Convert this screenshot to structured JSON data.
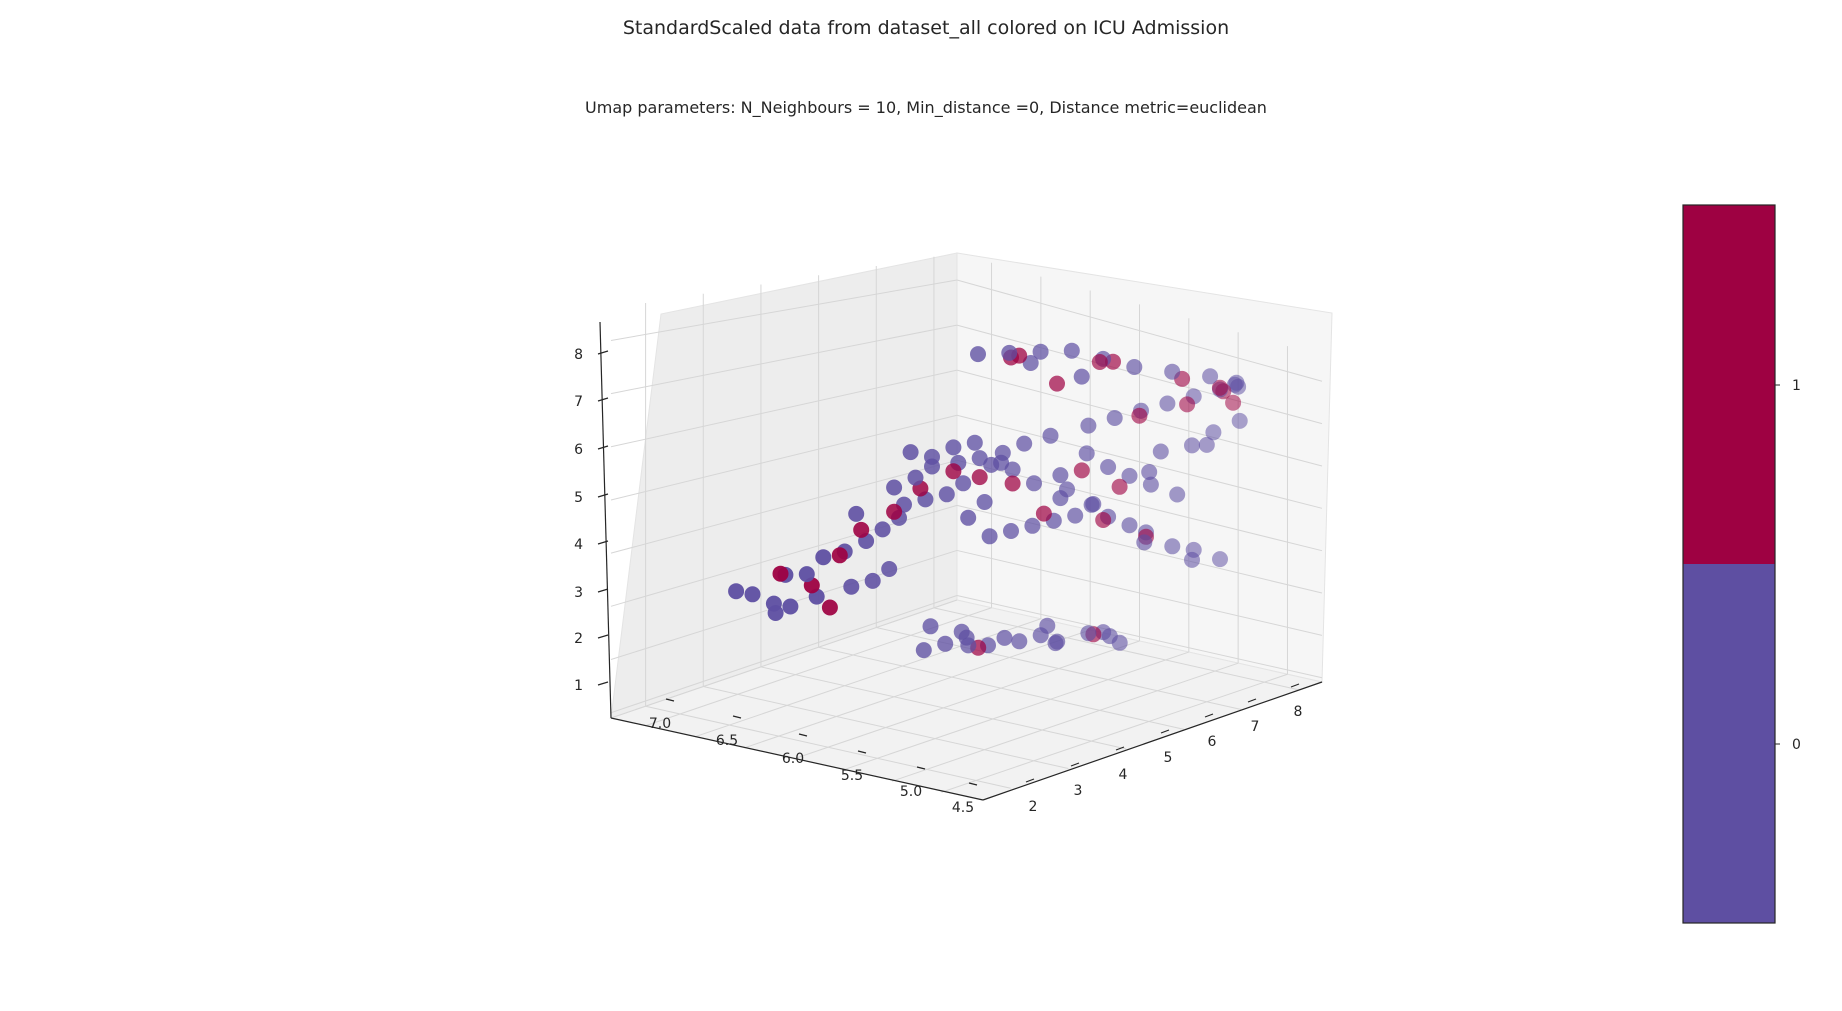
{
  "chart_data": {
    "type": "scatter",
    "projection": "3d",
    "title": "StandardScaled data from dataset_all colored on ICU Admission",
    "subtitle": "Umap parameters: N_Neighbours = 10, Min_distance =0, Distance metric=euclidean",
    "x_ticks": [
      "4.5",
      "5.0",
      "5.5",
      "6.0",
      "6.5",
      "7.0"
    ],
    "y_ticks": [
      "2",
      "3",
      "4",
      "5",
      "6",
      "7",
      "8"
    ],
    "z_ticks": [
      "1",
      "2",
      "3",
      "4",
      "5",
      "6",
      "7",
      "8"
    ],
    "xlim": [
      4.3,
      7.3
    ],
    "ylim": [
      1.3,
      8.7
    ],
    "zlim": [
      0.9,
      8.6
    ],
    "grid": true,
    "colorbar": {
      "ticks": [
        "0",
        "1"
      ],
      "colors": [
        "#5e4fa2",
        "#9e0142"
      ]
    },
    "class_colors": {
      "0": "#5e4fa2",
      "1": "#9e0142"
    },
    "series": [
      {
        "label": "0",
        "points": [
          [
            6.9,
            2.9,
            3.4
          ],
          [
            6.8,
            3.0,
            3.3
          ],
          [
            6.7,
            3.2,
            3.1
          ],
          [
            6.6,
            3.3,
            3.0
          ],
          [
            6.5,
            3.6,
            3.2
          ],
          [
            6.5,
            3.4,
            3.6
          ],
          [
            6.4,
            3.5,
            3.9
          ],
          [
            6.3,
            3.7,
            4.0
          ],
          [
            6.6,
            3.2,
            3.6
          ],
          [
            6.2,
            3.9,
            4.2
          ],
          [
            6.1,
            4.0,
            4.4
          ],
          [
            6.0,
            4.1,
            4.6
          ],
          [
            6.2,
            3.7,
            4.7
          ],
          [
            6.0,
            4.2,
            4.9
          ],
          [
            5.9,
            4.4,
            5.0
          ],
          [
            5.8,
            4.6,
            5.1
          ],
          [
            5.7,
            4.7,
            5.3
          ],
          [
            5.9,
            4.2,
            5.4
          ],
          [
            5.8,
            4.3,
            5.6
          ],
          [
            5.7,
            4.6,
            5.7
          ],
          [
            5.6,
            4.8,
            5.8
          ],
          [
            5.5,
            5.0,
            5.7
          ],
          [
            5.5,
            4.8,
            5.6
          ],
          [
            5.4,
            5.0,
            5.5
          ],
          [
            6.1,
            3.8,
            3.3
          ],
          [
            6.0,
            3.9,
            3.5
          ],
          [
            6.2,
            3.6,
            3.2
          ],
          [
            6.6,
            3.0,
            2.8
          ],
          [
            5.4,
            3.2,
            1.2
          ],
          [
            5.3,
            3.4,
            1.3
          ],
          [
            5.2,
            3.6,
            1.4
          ],
          [
            5.1,
            3.8,
            1.2
          ],
          [
            5.0,
            3.9,
            1.3
          ],
          [
            5.2,
            3.5,
            1.5
          ],
          [
            5.3,
            3.1,
            1.6
          ],
          [
            5.0,
            4.2,
            1.3
          ],
          [
            4.9,
            4.4,
            1.4
          ],
          [
            4.8,
            4.5,
            1.2
          ],
          [
            4.9,
            4.7,
            1.3
          ],
          [
            4.7,
            4.9,
            1.4
          ],
          [
            4.8,
            4.3,
            1.5
          ],
          [
            5.1,
            3.4,
            1.1
          ],
          [
            4.6,
            5.1,
            1.3
          ],
          [
            4.6,
            5.3,
            1.2
          ],
          [
            4.7,
            5.2,
            1.5
          ],
          [
            5.6,
            5.0,
            4.2
          ],
          [
            5.5,
            5.2,
            4.3
          ],
          [
            5.4,
            5.4,
            4.4
          ],
          [
            5.3,
            5.6,
            4.5
          ],
          [
            5.2,
            5.8,
            4.6
          ],
          [
            5.0,
            6.0,
            4.5
          ],
          [
            4.9,
            6.2,
            4.3
          ],
          [
            4.8,
            6.3,
            4.1
          ],
          [
            4.9,
            6.5,
            4.0
          ],
          [
            4.7,
            6.6,
            3.8
          ],
          [
            4.6,
            6.8,
            3.7
          ],
          [
            4.7,
            7.0,
            3.6
          ],
          [
            4.5,
            7.1,
            3.5
          ],
          [
            5.1,
            5.9,
            4.8
          ],
          [
            5.2,
            5.5,
            4.9
          ],
          [
            5.0,
            5.7,
            4.7
          ],
          [
            5.4,
            4.8,
            5.8
          ],
          [
            5.3,
            5.0,
            6.0
          ],
          [
            5.2,
            5.3,
            6.2
          ],
          [
            5.0,
            5.6,
            6.4
          ],
          [
            4.9,
            5.9,
            6.6
          ],
          [
            4.8,
            6.2,
            6.8
          ],
          [
            4.7,
            6.5,
            7.0
          ],
          [
            4.6,
            6.8,
            7.2
          ],
          [
            4.5,
            7.1,
            7.4
          ],
          [
            4.5,
            7.4,
            7.6
          ],
          [
            4.6,
            7.7,
            7.7
          ],
          [
            4.7,
            7.9,
            7.9
          ],
          [
            4.8,
            7.6,
            8.0
          ],
          [
            5.0,
            7.3,
            8.1
          ],
          [
            5.2,
            7.0,
            8.2
          ],
          [
            5.3,
            6.6,
            8.3
          ],
          [
            5.4,
            6.2,
            8.4
          ],
          [
            5.5,
            5.8,
            8.3
          ],
          [
            5.6,
            5.4,
            8.2
          ],
          [
            5.7,
            5.0,
            8.1
          ],
          [
            5.5,
            5.6,
            8.0
          ],
          [
            5.4,
            6.4,
            7.9
          ],
          [
            4.6,
            7.2,
            6.5
          ],
          [
            4.7,
            7.0,
            6.2
          ],
          [
            4.8,
            6.6,
            6.0
          ],
          [
            4.7,
            7.3,
            6.3
          ],
          [
            4.5,
            7.5,
            6.8
          ],
          [
            5.0,
            6.0,
            5.6
          ],
          [
            5.1,
            5.8,
            5.9
          ],
          [
            4.9,
            6.2,
            5.4
          ],
          [
            4.8,
            6.4,
            5.2
          ],
          [
            4.7,
            6.7,
            5.0
          ],
          [
            4.9,
            6.6,
            5.6
          ],
          [
            5.2,
            5.5,
            5.4
          ],
          [
            5.3,
            5.2,
            5.2
          ],
          [
            5.1,
            5.4,
            5.0
          ],
          [
            5.7,
            4.5,
            6.0
          ],
          [
            5.8,
            4.3,
            5.8
          ],
          [
            5.9,
            4.1,
            5.9
          ],
          [
            5.6,
            4.7,
            6.1
          ],
          [
            6.0,
            4.0,
            5.2
          ],
          [
            5.6,
            4.9,
            4.9
          ],
          [
            5.7,
            4.8,
            4.6
          ]
        ]
      },
      {
        "label": "1",
        "points": [
          [
            6.6,
            3.1,
            3.6
          ],
          [
            6.3,
            3.6,
            3.9
          ],
          [
            6.5,
            3.5,
            3.4
          ],
          [
            6.0,
            4.0,
            4.7
          ],
          [
            5.9,
            4.3,
            5.2
          ],
          [
            5.7,
            4.5,
            5.5
          ],
          [
            5.6,
            4.8,
            5.4
          ],
          [
            5.4,
            5.0,
            5.2
          ],
          [
            6.2,
            3.8,
            4.4
          ],
          [
            6.3,
            3.4,
            2.8
          ],
          [
            5.1,
            3.6,
            1.1
          ],
          [
            4.7,
            5.0,
            1.4
          ],
          [
            5.3,
            5.4,
            4.6
          ],
          [
            5.0,
            5.9,
            4.4
          ],
          [
            4.8,
            6.3,
            4.0
          ],
          [
            4.9,
            6.0,
            5.1
          ],
          [
            5.1,
            5.7,
            5.5
          ],
          [
            4.9,
            6.4,
            6.8
          ],
          [
            4.7,
            6.9,
            7.1
          ],
          [
            4.6,
            7.4,
            7.5
          ],
          [
            4.8,
            7.8,
            7.8
          ],
          [
            5.0,
            7.5,
            8.0
          ],
          [
            5.3,
            6.8,
            8.3
          ],
          [
            5.6,
            5.6,
            8.2
          ],
          [
            5.5,
            5.2,
            8.0
          ],
          [
            5.2,
            6.3,
            8.1
          ],
          [
            5.4,
            5.9,
            7.6
          ],
          [
            4.6,
            7.6,
            7.3
          ]
        ]
      }
    ]
  }
}
